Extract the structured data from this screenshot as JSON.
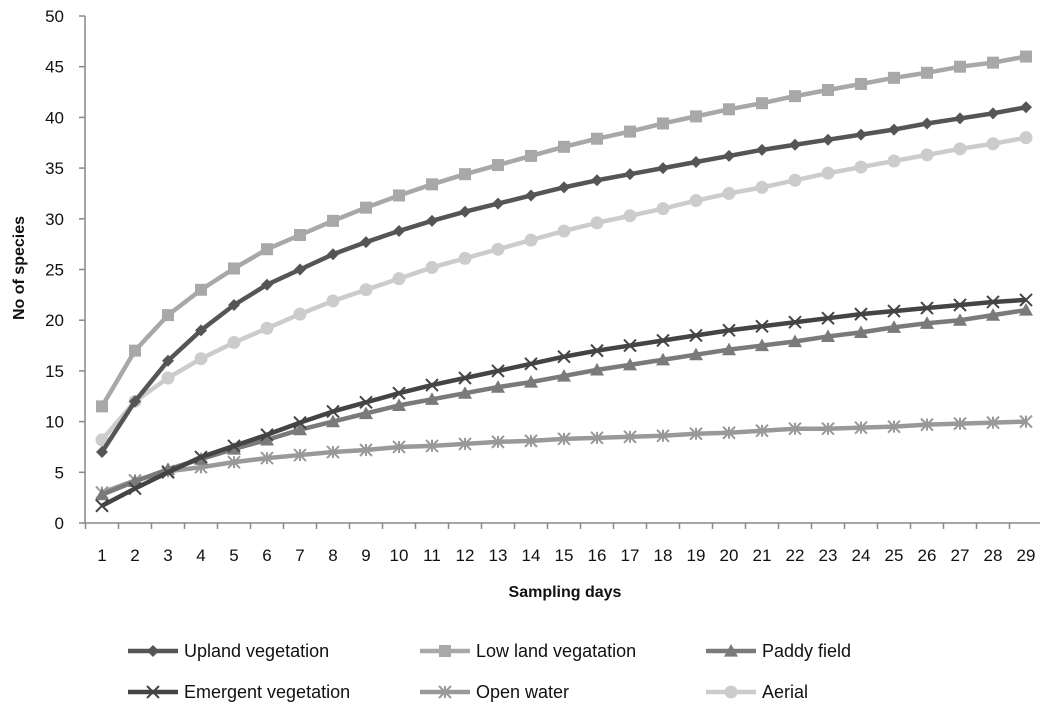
{
  "chart_data": {
    "type": "line",
    "xlabel": "Sampling days",
    "ylabel": "No of species",
    "ylim": [
      0,
      50
    ],
    "yticks": [
      0,
      5,
      10,
      15,
      20,
      25,
      30,
      35,
      40,
      45,
      50
    ],
    "grid": false,
    "legend_position": "bottom",
    "x": [
      "1",
      "2",
      "3",
      "4",
      "5",
      "6",
      "7",
      "8",
      "9",
      "10",
      "11",
      "12",
      "13",
      "14",
      "15",
      "16",
      "17",
      "18",
      "19",
      "20",
      "21",
      "22",
      "23",
      "24",
      "25",
      "26",
      "27",
      "28",
      "29"
    ],
    "series": [
      {
        "name": "Upland vegetation",
        "marker": "diamond",
        "color": "#555555",
        "values": [
          7,
          12,
          16,
          19,
          21.5,
          23.5,
          25,
          26.5,
          27.7,
          28.8,
          29.8,
          30.7,
          31.5,
          32.3,
          33.1,
          33.8,
          34.4,
          35.0,
          35.6,
          36.2,
          36.8,
          37.3,
          37.8,
          38.3,
          38.8,
          39.4,
          39.9,
          40.4,
          41
        ]
      },
      {
        "name": "Low land vegatation",
        "marker": "square",
        "color": "#a8a8a8",
        "values": [
          11.5,
          17,
          20.5,
          23,
          25.1,
          27,
          28.4,
          29.8,
          31.1,
          32.3,
          33.4,
          34.4,
          35.3,
          36.2,
          37.1,
          37.9,
          38.6,
          39.4,
          40.1,
          40.8,
          41.4,
          42.1,
          42.7,
          43.3,
          43.9,
          44.4,
          45,
          45.4,
          46
        ]
      },
      {
        "name": "Paddy field",
        "marker": "triangle",
        "color": "#7a7a7a",
        "values": [
          2.8,
          4.1,
          5.3,
          6.3,
          7.3,
          8.2,
          9.2,
          10,
          10.8,
          11.6,
          12.2,
          12.8,
          13.4,
          13.9,
          14.5,
          15.1,
          15.6,
          16.1,
          16.6,
          17.1,
          17.5,
          17.9,
          18.4,
          18.8,
          19.3,
          19.7,
          20,
          20.5,
          21
        ]
      },
      {
        "name": "Emergent vegetation",
        "marker": "x",
        "color": "#444444",
        "values": [
          1.7,
          3.4,
          5,
          6.5,
          7.6,
          8.7,
          9.9,
          11,
          11.9,
          12.8,
          13.6,
          14.3,
          15,
          15.7,
          16.4,
          17,
          17.5,
          18,
          18.5,
          19,
          19.4,
          19.8,
          20.2,
          20.6,
          20.9,
          21.2,
          21.5,
          21.8,
          22
        ]
      },
      {
        "name": "Open water",
        "marker": "star",
        "color": "#999999",
        "values": [
          3,
          4.2,
          5.1,
          5.5,
          6,
          6.4,
          6.7,
          7,
          7.2,
          7.5,
          7.6,
          7.8,
          8,
          8.1,
          8.3,
          8.4,
          8.5,
          8.6,
          8.8,
          8.9,
          9.1,
          9.3,
          9.3,
          9.4,
          9.5,
          9.7,
          9.8,
          9.9,
          10
        ]
      },
      {
        "name": "Aerial",
        "marker": "circle",
        "color": "#cccccc",
        "values": [
          8.2,
          12,
          14.3,
          16.2,
          17.8,
          19.2,
          20.6,
          21.9,
          23,
          24.1,
          25.2,
          26.1,
          27,
          27.9,
          28.8,
          29.6,
          30.3,
          31,
          31.8,
          32.5,
          33.1,
          33.8,
          34.5,
          35.1,
          35.7,
          36.3,
          36.9,
          37.4,
          38
        ]
      }
    ]
  }
}
